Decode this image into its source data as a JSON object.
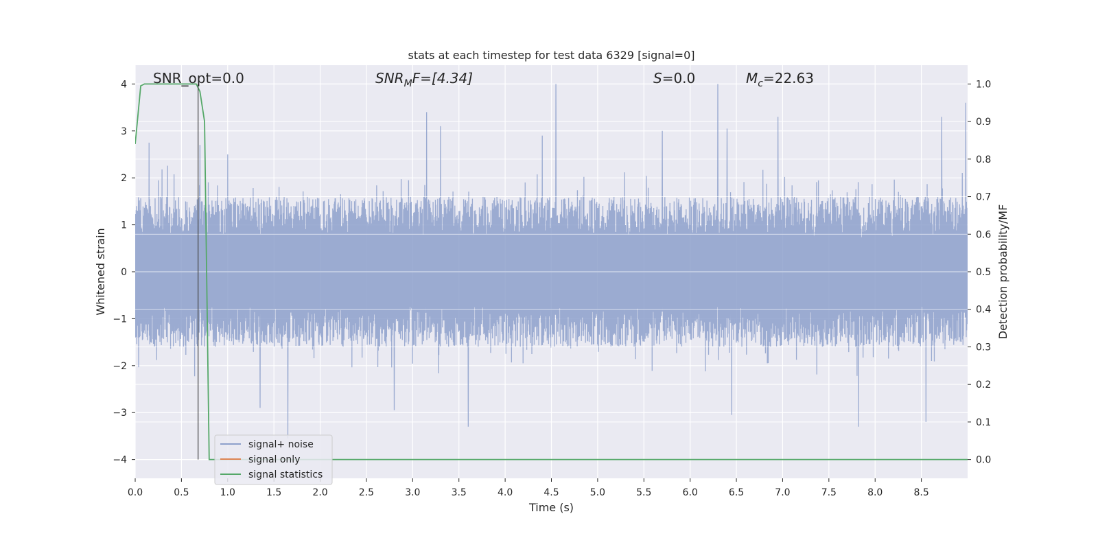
{
  "chart_data": {
    "type": "line",
    "title": "stats at each timestep for test data 6329 [signal=0]",
    "xlabel": "Time (s)",
    "ylabel": "Whitened strain",
    "y2label": "Detection probability/MF",
    "xlim": [
      0.0,
      9.0
    ],
    "ylim": [
      -4.4,
      4.4
    ],
    "y2lim": [
      -0.05,
      1.05
    ],
    "xticks": [
      0.0,
      0.5,
      1.0,
      1.5,
      2.0,
      2.5,
      3.0,
      3.5,
      4.0,
      4.5,
      5.0,
      5.5,
      6.0,
      6.5,
      7.0,
      7.5,
      8.0,
      8.5
    ],
    "xtick_labels": [
      "0.0",
      "0.5",
      "1.0",
      "1.5",
      "2.0",
      "2.5",
      "3.0",
      "3.5",
      "4.0",
      "4.5",
      "5.0",
      "5.5",
      "6.0",
      "6.5",
      "7.0",
      "7.5",
      "8.0",
      "8.5"
    ],
    "yticks": [
      -4,
      -3,
      -2,
      -1,
      0,
      1,
      2,
      3,
      4
    ],
    "ytick_labels": [
      "−4",
      "−3",
      "−2",
      "−1",
      "0",
      "1",
      "2",
      "3",
      "4"
    ],
    "y2ticks": [
      0.0,
      0.1,
      0.2,
      0.3,
      0.4,
      0.5,
      0.6,
      0.7,
      0.8,
      0.9,
      1.0
    ],
    "y2tick_labels": [
      "0.0",
      "0.1",
      "0.2",
      "0.3",
      "0.4",
      "0.5",
      "0.6",
      "0.7",
      "0.8",
      "0.9",
      "1.0"
    ],
    "grid": true,
    "legend_placement": "lower-left",
    "annotations": {
      "snr_opt": "SNR_opt=0.0",
      "snr_mf_main": "SNR",
      "snr_mf_sub": "M",
      "snr_mf_rest": "F=[4.34]",
      "s_main": "S",
      "s_rest": "=0.0",
      "mc_main": "M",
      "mc_sub": "c",
      "mc_rest": "=22.63"
    },
    "marker_line": {
      "x": 0.68,
      "y_from": -4.0,
      "y_to": 4.0
    },
    "series": [
      {
        "name": "signal+ noise",
        "axis": "left",
        "color": "#8da0cb",
        "style": "noise",
        "envelope": 1.6,
        "x_range": [
          0.0,
          9.0
        ],
        "peaks": [
          {
            "x": 0.15,
            "y": 2.75
          },
          {
            "x": 0.7,
            "y": 2.7
          },
          {
            "x": 1.0,
            "y": 2.5
          },
          {
            "x": 1.65,
            "y": -3.55
          },
          {
            "x": 3.15,
            "y": 3.4
          },
          {
            "x": 3.3,
            "y": 3.1
          },
          {
            "x": 3.6,
            "y": -3.3
          },
          {
            "x": 4.55,
            "y": 4.0
          },
          {
            "x": 4.4,
            "y": 2.9
          },
          {
            "x": 6.3,
            "y": 4.0
          },
          {
            "x": 6.4,
            "y": 3.05
          },
          {
            "x": 6.45,
            "y": -3.05
          },
          {
            "x": 6.95,
            "y": 3.3
          },
          {
            "x": 7.82,
            "y": -3.3
          },
          {
            "x": 8.55,
            "y": -3.2
          },
          {
            "x": 8.72,
            "y": 3.3
          },
          {
            "x": 8.98,
            "y": 3.6
          },
          {
            "x": 2.8,
            "y": -2.95
          },
          {
            "x": 1.35,
            "y": -2.9
          },
          {
            "x": 5.7,
            "y": 3.0
          }
        ]
      },
      {
        "name": "signal only",
        "axis": "left",
        "color": "#dd8452",
        "x": [
          0.0,
          9.0
        ],
        "y": [
          0.0,
          0.0
        ]
      },
      {
        "name": "signal statistics",
        "axis": "right",
        "color": "#55a868",
        "x": [
          0.0,
          0.06,
          0.1,
          0.2,
          0.3,
          0.4,
          0.5,
          0.6,
          0.66,
          0.7,
          0.75,
          0.8,
          0.9,
          1.0,
          1.5,
          2.0,
          3.0,
          4.0,
          5.0,
          6.0,
          7.0,
          8.0,
          9.0
        ],
        "y": [
          0.84,
          0.995,
          1.0,
          1.0,
          1.0,
          1.0,
          1.0,
          1.0,
          1.0,
          0.98,
          0.9,
          0.0,
          0.0,
          0.0,
          0.0,
          0.0,
          0.0,
          0.0,
          0.0,
          0.0,
          0.0,
          0.0,
          0.0
        ]
      }
    ]
  }
}
